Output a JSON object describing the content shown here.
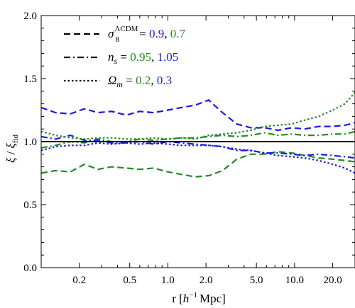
{
  "chart_data": {
    "type": "line",
    "xscale": "log",
    "xlim": [
      0.1,
      30
    ],
    "ylim": [
      0.0,
      2.0
    ],
    "xticks": [
      0.2,
      0.5,
      1.0,
      2.0,
      5.0,
      10.0,
      20.0
    ],
    "xtick_labels": [
      "0.2",
      "0.5",
      "1.0",
      "2.0",
      "5.0",
      "10.0",
      "20.0"
    ],
    "yticks": [
      0.0,
      0.5,
      1.0,
      1.5,
      2.0
    ],
    "ytick_labels": [
      "0.0",
      "0.5",
      "1.0",
      "1.5",
      "2.0"
    ],
    "xlabel": {
      "prefix": "r  [",
      "h": "h",
      "exp": "−1",
      "unit": "Mpc]"
    },
    "ylabel": {
      "xi": "ξ",
      "slash": " / ",
      "xi2": "ξ",
      "sub": "fid"
    },
    "grid": false,
    "legend_position": "top-left",
    "legend": [
      {
        "style": "dashed",
        "symbol": "σ",
        "sub": "8",
        "sup": "ΛCDM",
        "eq": " = ",
        "v1": "0.9",
        "v1_color": "#1a1ae6",
        "sep": ",",
        "v2": "0.7",
        "v2_color": "#1f8c1f"
      },
      {
        "style": "dashdot",
        "symbol": "n",
        "sub": "s",
        "sup": "",
        "eq": " = ",
        "v1": "0.95",
        "v1_color": "#1f8c1f",
        "sep": ",",
        "v2": "1.05",
        "v2_color": "#1a1ae6"
      },
      {
        "style": "dotted",
        "symbol": "Ω",
        "sub": "m",
        "sup": "",
        "eq": " = ",
        "v1": "0.2",
        "v1_color": "#1f8c1f",
        "sep": ",",
        "v2": "0.3",
        "v2_color": "#1a1ae6"
      }
    ],
    "x": [
      0.1,
      0.13,
      0.17,
      0.22,
      0.28,
      0.36,
      0.47,
      0.6,
      0.77,
      1.0,
      1.28,
      1.65,
      2.1,
      2.7,
      3.5,
      4.5,
      5.8,
      7.4,
      9.5,
      12.0,
      15.5,
      20.0,
      25.0,
      30.0
    ],
    "series": [
      {
        "color": "#1a1ae6",
        "style": "dashed",
        "values": [
          1.27,
          1.23,
          1.22,
          1.26,
          1.23,
          1.24,
          1.21,
          1.24,
          1.23,
          1.25,
          1.27,
          1.29,
          1.33,
          1.23,
          1.14,
          1.11,
          1.11,
          1.09,
          1.11,
          1.1,
          1.12,
          1.12,
          1.13,
          1.15
        ]
      },
      {
        "color": "#1f8c1f",
        "style": "dashed",
        "values": [
          0.75,
          0.77,
          0.76,
          0.82,
          0.78,
          0.8,
          0.79,
          0.78,
          0.79,
          0.76,
          0.74,
          0.72,
          0.73,
          0.77,
          0.86,
          0.9,
          0.9,
          0.92,
          0.91,
          0.89,
          0.87,
          0.86,
          0.85,
          0.84
        ]
      },
      {
        "color": "#1f8c1f",
        "style": "dashdot",
        "values": [
          0.95,
          0.97,
          1.0,
          0.99,
          1.02,
          1.0,
          1.0,
          1.02,
          1.01,
          1.02,
          1.03,
          1.03,
          1.04,
          1.05,
          1.04,
          1.05,
          1.07,
          1.05,
          1.06,
          1.05,
          1.05,
          1.06,
          1.06,
          1.08
        ]
      },
      {
        "color": "#1a1ae6",
        "style": "dashdot",
        "values": [
          1.04,
          1.02,
          1.05,
          1.01,
          1.01,
          0.99,
          0.99,
          1.0,
          0.98,
          1.0,
          0.99,
          0.98,
          0.97,
          0.96,
          0.93,
          0.93,
          0.91,
          0.91,
          0.9,
          0.89,
          0.9,
          0.89,
          0.88,
          0.87
        ]
      },
      {
        "color": "#1f8c1f",
        "style": "dotted",
        "values": [
          1.08,
          1.05,
          1.03,
          1.02,
          1.03,
          1.03,
          1.02,
          1.02,
          1.03,
          1.02,
          1.03,
          1.02,
          1.05,
          1.06,
          1.07,
          1.09,
          1.12,
          1.13,
          1.14,
          1.17,
          1.2,
          1.25,
          1.3,
          1.39
        ]
      },
      {
        "color": "#1a1ae6",
        "style": "dotted",
        "values": [
          0.93,
          0.96,
          0.97,
          0.97,
          0.99,
          0.98,
          0.99,
          0.98,
          0.99,
          0.98,
          0.97,
          0.97,
          0.97,
          0.96,
          0.94,
          0.93,
          0.91,
          0.89,
          0.88,
          0.87,
          0.85,
          0.82,
          0.79,
          0.75
        ]
      },
      {
        "color": "#000000",
        "style": "solid",
        "values": [
          1.0,
          1.0,
          1.0,
          1.0,
          1.0,
          1.0,
          1.0,
          1.0,
          1.0,
          1.0,
          1.0,
          1.0,
          1.0,
          1.0,
          1.0,
          1.0,
          1.0,
          1.0,
          1.0,
          1.0,
          1.0,
          1.0,
          1.0,
          1.0
        ]
      }
    ]
  }
}
